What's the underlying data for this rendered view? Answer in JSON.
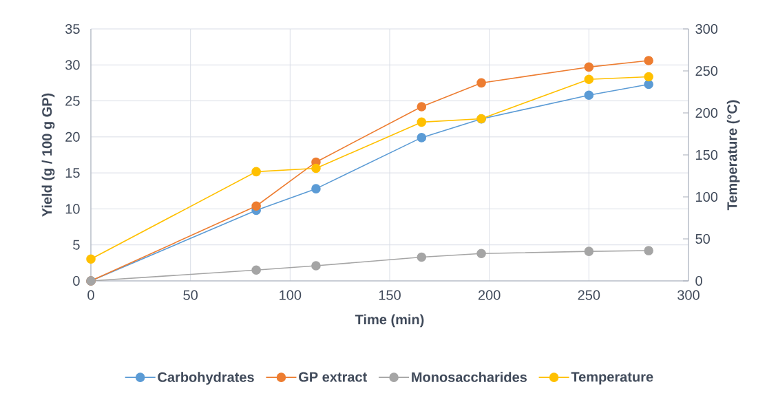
{
  "chart_data": {
    "type": "line",
    "xlabel": "Time (min)",
    "ylabel": "Yield (g / 100 g GP)",
    "y2label": "Temperature (°C)",
    "x": [
      0,
      83,
      113,
      166,
      196,
      250,
      280
    ],
    "series": [
      {
        "name": "Carbohydrates",
        "color": "#5b9bd5",
        "values": [
          0,
          9.8,
          12.8,
          19.9,
          22.5,
          25.8,
          27.3
        ]
      },
      {
        "name": "GP extract",
        "color": "#ed7d31",
        "values": [
          0,
          10.4,
          16.5,
          24.2,
          27.5,
          29.7,
          30.6
        ]
      },
      {
        "name": "Monosaccharides",
        "color": "#a5a5a5",
        "values": [
          0,
          1.5,
          2.1,
          3.3,
          3.8,
          4.1,
          4.2
        ]
      },
      {
        "name": "Temperature",
        "color": "#ffc000",
        "axis": "y2",
        "values": [
          26,
          130,
          134,
          189,
          193,
          240,
          243
        ]
      }
    ],
    "xlim": [
      0,
      300
    ],
    "xticks": [
      0,
      50,
      100,
      150,
      200,
      250,
      300
    ],
    "ylim": [
      0,
      35
    ],
    "yticks": [
      0,
      5,
      10,
      15,
      20,
      25,
      30,
      35
    ],
    "y2lim": [
      0,
      300
    ],
    "y2ticks": [
      0,
      50,
      100,
      150,
      200,
      250,
      300
    ],
    "grid": true,
    "legend": "bottom",
    "marker": "circle",
    "line_style": "solid"
  }
}
